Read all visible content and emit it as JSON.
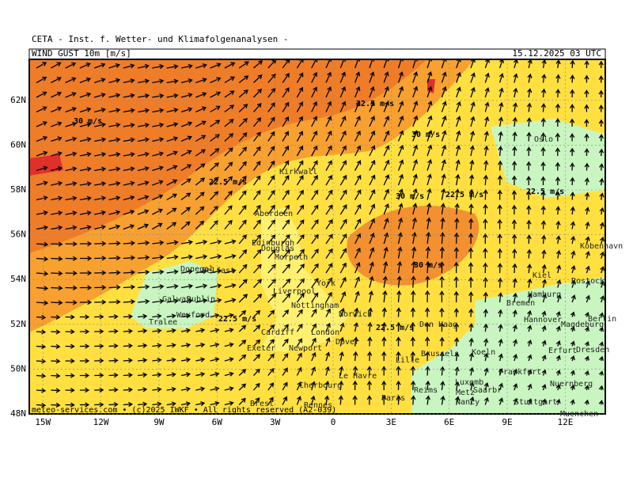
{
  "header": {
    "institute": "CETA - Inst. f. Wetter- und Klimafolgenanalysen -",
    "field": "WIND GUST 10m [m/s]",
    "valid_time": "15.12.2025 03 UTC"
  },
  "axes": {
    "lat_ticks": [
      {
        "value": 62,
        "label": "62N"
      },
      {
        "value": 60,
        "label": "60N"
      },
      {
        "value": 58,
        "label": "58N"
      },
      {
        "value": 56,
        "label": "56N"
      },
      {
        "value": 54,
        "label": "54N"
      },
      {
        "value": 52,
        "label": "52N"
      },
      {
        "value": 50,
        "label": "50N"
      },
      {
        "value": 48,
        "label": "48N"
      }
    ],
    "lon_ticks": [
      {
        "value": -15,
        "label": "15W"
      },
      {
        "value": -12,
        "label": "12W"
      },
      {
        "value": -9,
        "label": "9W"
      },
      {
        "value": -6,
        "label": "6W"
      },
      {
        "value": -3,
        "label": "3W"
      },
      0,
      {
        "value": 3,
        "label": "3E"
      },
      {
        "value": 6,
        "label": "6E"
      },
      {
        "value": 9,
        "label": "9E"
      },
      {
        "value": 12,
        "label": "12E"
      }
    ]
  },
  "contour_labels": [
    "30 m/s",
    "22.5 m/s",
    "30 m/s",
    "22.5 m/s",
    "30 m/s",
    "22.5 m/s",
    "22.5 m/s",
    "30 m/s",
    "22.5 m/s",
    "22.5 m/s"
  ],
  "places": [
    "Kirkwall",
    "Aberdeen",
    "Edinburgh",
    "Douglas",
    "Morpeth",
    "Donegal",
    "Belfast",
    "Galway",
    "Dublin",
    "York",
    "Liverpool",
    "Nottingham",
    "Wexford",
    "Tralee",
    "Norwich",
    "Cardiff",
    "London",
    "Exeter",
    "Newport",
    "Dover",
    "Lille",
    "Brussels",
    "Den Haag",
    "Le Havre",
    "Cherbourg",
    "Paris",
    "Reims",
    "Luxemb.",
    "Metz",
    "Saarbr",
    "Nancy",
    "Brest",
    "Rennes",
    "Koeln",
    "Frankfurt",
    "Stuttgart",
    "Nuernberg",
    "Erfurt",
    "Dresden",
    "Hannover",
    "Magdeburg",
    "Berlin",
    "Bremen",
    "Hamburg",
    "Kiel",
    "Rostock",
    "Kobenhavn",
    "Oslo",
    "Muenchen"
  ],
  "footer": "meteo-services.com • (c)2025 IWKF • All rights reserved (A2-039)"
}
